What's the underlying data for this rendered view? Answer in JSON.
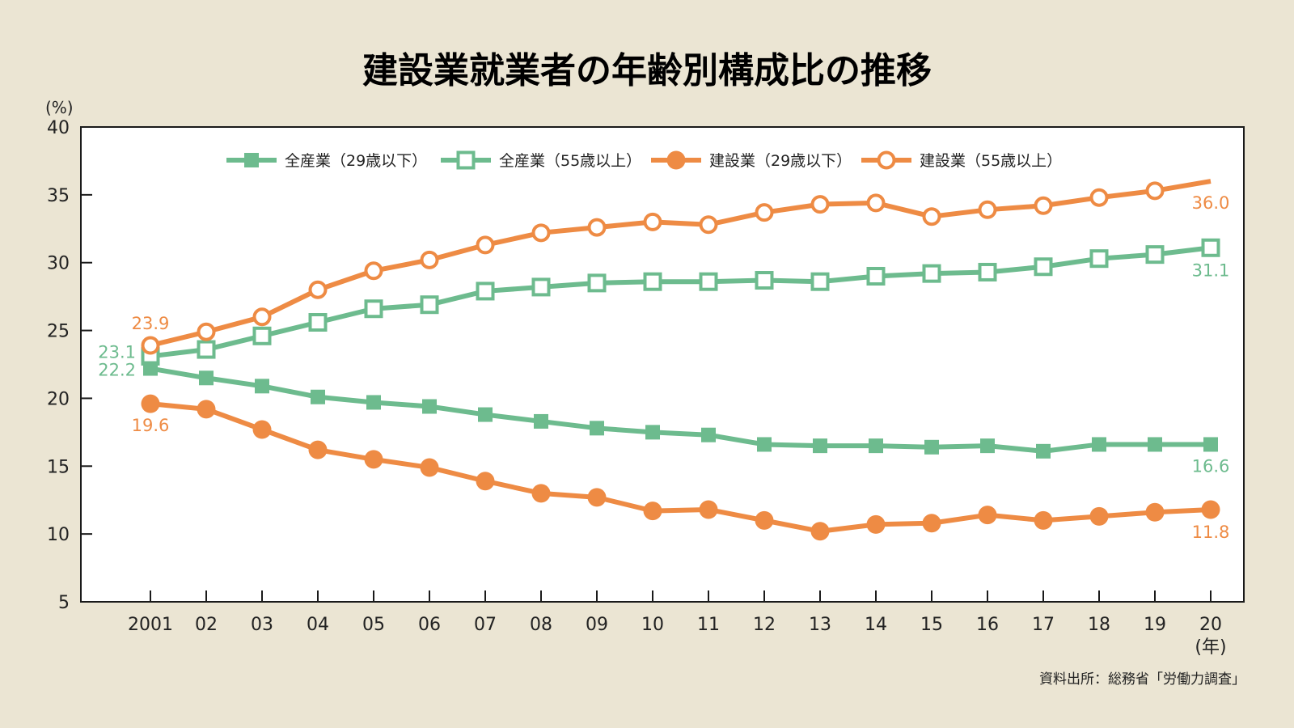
{
  "chart_data": {
    "type": "line",
    "title": "建設業就業者の年齢別構成比の推移",
    "y_unit": "(%)",
    "x_unit": "(年)",
    "ylim": [
      5,
      40
    ],
    "yticks": [
      5,
      10,
      15,
      20,
      25,
      30,
      35,
      40
    ],
    "categories": [
      "2001",
      "02",
      "03",
      "04",
      "05",
      "06",
      "07",
      "08",
      "09",
      "10",
      "11",
      "12",
      "13",
      "14",
      "15",
      "16",
      "17",
      "18",
      "19",
      "20"
    ],
    "grid": false,
    "legend_position": "top",
    "series": [
      {
        "name": "全産業（29歳以下）",
        "color": "#6dbb8e",
        "marker": "filled-square",
        "values": [
          22.2,
          21.5,
          20.9,
          20.1,
          19.7,
          19.4,
          18.8,
          18.3,
          17.8,
          17.5,
          17.3,
          16.6,
          16.5,
          16.5,
          16.4,
          16.5,
          16.1,
          16.6,
          16.6,
          16.6
        ],
        "first_label": "22.2",
        "last_label": "16.6"
      },
      {
        "name": "全産業（55歳以上）",
        "color": "#6dbb8e",
        "marker": "open-square",
        "values": [
          23.1,
          23.6,
          24.6,
          25.6,
          26.6,
          26.9,
          27.9,
          28.2,
          28.5,
          28.6,
          28.6,
          28.7,
          28.6,
          29.0,
          29.2,
          29.3,
          29.7,
          30.3,
          30.6,
          31.1
        ],
        "first_label": "23.1",
        "last_label": "31.1"
      },
      {
        "name": "建設業（29歳以下）",
        "color": "#ee8b44",
        "marker": "filled-circle",
        "values": [
          19.6,
          19.2,
          17.7,
          16.2,
          15.5,
          14.9,
          13.9,
          13.0,
          12.7,
          11.7,
          11.8,
          11.0,
          10.2,
          10.7,
          10.8,
          11.4,
          11.0,
          11.3,
          11.6,
          11.8
        ],
        "first_label": "19.6",
        "last_label": "11.8"
      },
      {
        "name": "建設業（55歳以上）",
        "color": "#ee8b44",
        "marker": "open-circle",
        "values": [
          23.9,
          24.9,
          26.0,
          28.0,
          29.4,
          30.2,
          31.3,
          32.2,
          32.6,
          33.0,
          32.8,
          33.7,
          34.3,
          34.4,
          33.4,
          33.9,
          34.2,
          34.8,
          35.3,
          36.0
        ],
        "first_label": "23.9",
        "last_label": "36.0"
      }
    ],
    "source": "資料出所：総務省「労働力調査」"
  }
}
